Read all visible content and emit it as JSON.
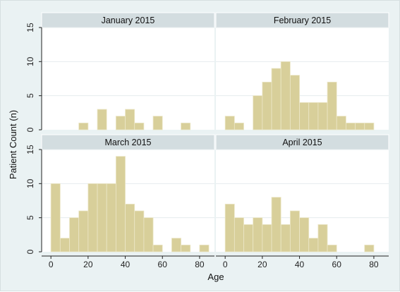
{
  "chart_data": {
    "type": "bar",
    "ylabel": "Patient Count (n)",
    "xlabel": "Age",
    "ylim": [
      0,
      15
    ],
    "xlim": [
      -5,
      88
    ],
    "yticks": [
      0,
      5,
      10,
      15
    ],
    "xticks": [
      0,
      20,
      40,
      60,
      80
    ],
    "bin_width": 5,
    "bar_color": "#d8cf9a",
    "bar_edge": "#ece7c8",
    "panels": [
      {
        "title": "January 2015",
        "bins": [
          [
            15,
            1
          ],
          [
            25,
            3
          ],
          [
            35,
            2
          ],
          [
            40,
            3
          ],
          [
            45,
            1
          ],
          [
            55,
            2
          ],
          [
            70,
            1
          ]
        ]
      },
      {
        "title": "February 2015",
        "bins": [
          [
            0,
            2
          ],
          [
            5,
            1
          ],
          [
            15,
            5
          ],
          [
            20,
            7
          ],
          [
            25,
            9
          ],
          [
            30,
            10
          ],
          [
            35,
            8
          ],
          [
            40,
            4
          ],
          [
            45,
            4
          ],
          [
            50,
            4
          ],
          [
            55,
            7
          ],
          [
            60,
            2
          ],
          [
            65,
            1
          ],
          [
            70,
            1
          ],
          [
            75,
            1
          ]
        ]
      },
      {
        "title": "March 2015",
        "bins": [
          [
            0,
            10
          ],
          [
            5,
            2
          ],
          [
            10,
            5
          ],
          [
            15,
            6
          ],
          [
            20,
            10
          ],
          [
            25,
            10
          ],
          [
            30,
            10
          ],
          [
            35,
            14
          ],
          [
            40,
            7
          ],
          [
            45,
            6
          ],
          [
            50,
            5
          ],
          [
            55,
            1
          ],
          [
            65,
            2
          ],
          [
            70,
            1
          ],
          [
            80,
            1
          ]
        ]
      },
      {
        "title": "April 2015",
        "bins": [
          [
            0,
            7
          ],
          [
            5,
            5
          ],
          [
            10,
            4
          ],
          [
            15,
            5
          ],
          [
            20,
            4
          ],
          [
            25,
            8
          ],
          [
            30,
            4
          ],
          [
            35,
            6
          ],
          [
            40,
            5
          ],
          [
            45,
            2
          ],
          [
            50,
            4
          ],
          [
            55,
            1
          ],
          [
            75,
            1
          ]
        ]
      }
    ]
  }
}
